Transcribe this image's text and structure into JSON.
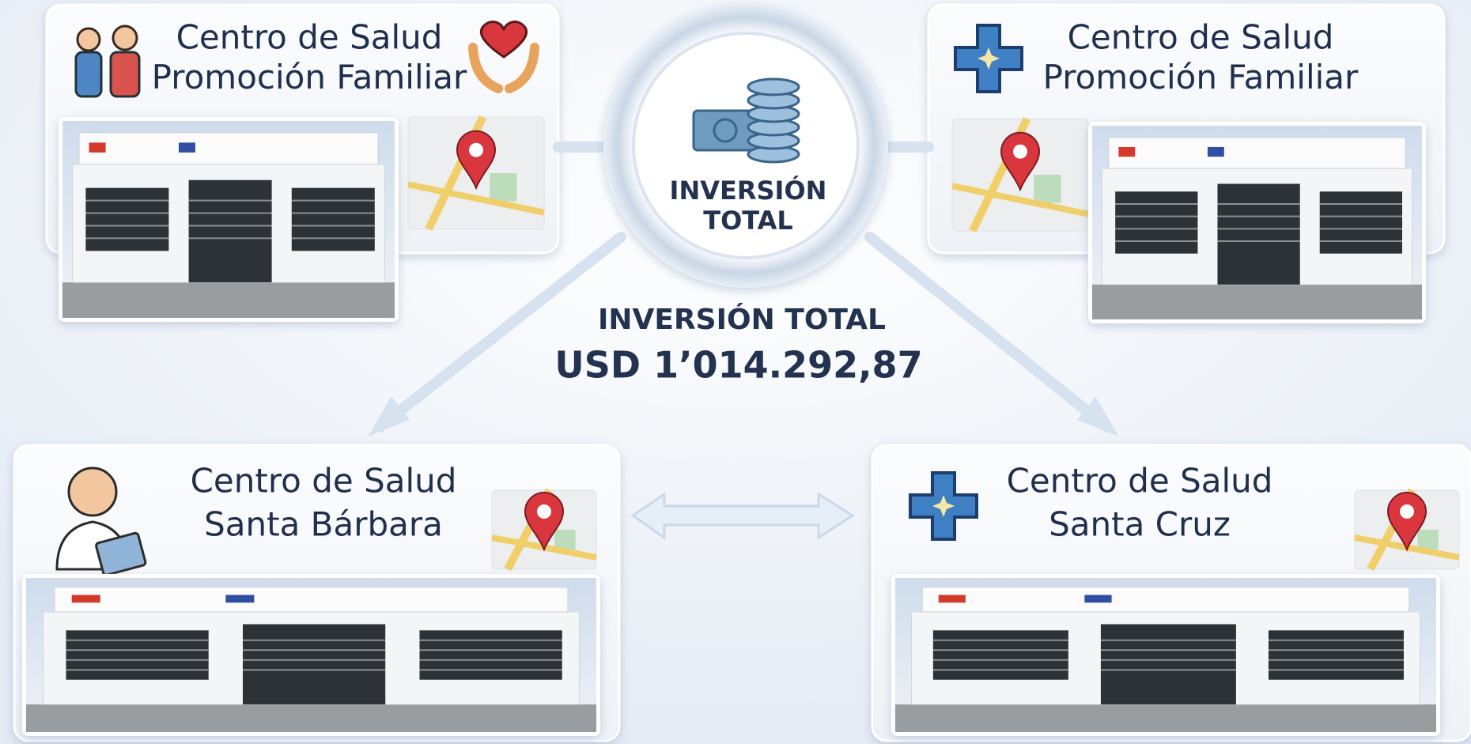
{
  "center": {
    "badge_lines": [
      "INVERSIÓN",
      "TOTAL"
    ],
    "label": "INVERSIÓN TOTAL",
    "amount": "USD 1’014.292,87"
  },
  "cards": [
    {
      "lines": [
        "Centro de Salud",
        "Promoción Familiar"
      ]
    },
    {
      "lines": [
        "Centro de Salud",
        "Promoción Familiar"
      ]
    },
    {
      "lines": [
        "Centro de Salud",
        "Santa Bárbara"
      ]
    },
    {
      "lines": [
        "Centro de Salud",
        "Santa Cruz"
      ]
    }
  ]
}
